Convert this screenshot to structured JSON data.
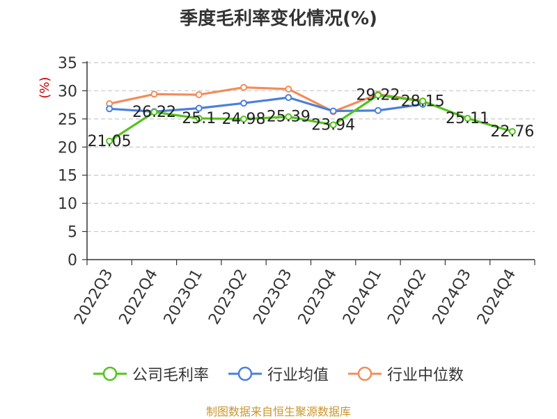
{
  "chart_data": {
    "type": "line",
    "title": "季度毛利率变化情况(%)",
    "ylabel": "(%)",
    "xlabel": "",
    "categories": [
      "2022Q3",
      "2022Q4",
      "2023Q1",
      "2023Q2",
      "2023Q3",
      "2023Q4",
      "2024Q1",
      "2024Q2",
      "2024Q3",
      "2024Q4"
    ],
    "ylim": [
      0,
      35
    ],
    "yticks": [
      0,
      5,
      10,
      15,
      20,
      25,
      30,
      35
    ],
    "grid": true,
    "legend_position": "bottom",
    "series": [
      {
        "name": "公司毛利率",
        "color": "#52c41a",
        "values": [
          21.05,
          26.22,
          25.1,
          24.98,
          25.39,
          23.94,
          29.22,
          28.15,
          25.11,
          22.76
        ],
        "labels": [
          "21.05",
          "26.22",
          "25.1",
          "24.98",
          "25.39",
          "23.94",
          "29.22",
          "28.15",
          "25.11",
          "22.76"
        ]
      },
      {
        "name": "行业均值",
        "color": "#4a7fdc",
        "values": [
          26.8,
          26.3,
          26.9,
          27.8,
          28.8,
          26.4,
          26.5,
          27.6,
          null,
          null
        ]
      },
      {
        "name": "行业中位数",
        "color": "#f28c5a",
        "values": [
          27.7,
          29.4,
          29.3,
          30.6,
          30.3,
          26.3,
          29.4,
          28.2,
          null,
          null
        ]
      }
    ]
  },
  "source": "制图数据来自恒生聚源数据库"
}
